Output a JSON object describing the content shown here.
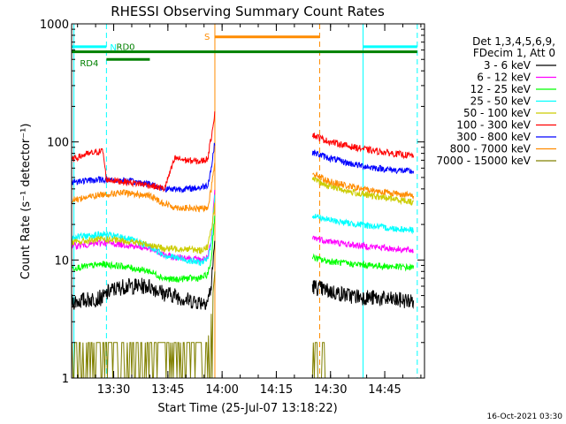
{
  "chart_data": {
    "type": "line",
    "title": "RHESSI Observing Summary Count Rates",
    "xlabel": "Start Time (25-Jul-07 13:18:22)",
    "ylabel": "Count Rate (s⁻¹ detector⁻¹)",
    "y_scale": "log",
    "ylim": [
      1,
      1000
    ],
    "xlim": [
      "13:18:22",
      "14:56:00"
    ],
    "x_ticks": [
      "13:30",
      "13:45",
      "14:00",
      "14:15",
      "14:30",
      "14:45"
    ],
    "y_ticks": [
      "1",
      "10",
      "100",
      "1000"
    ],
    "grid": false,
    "legend_placement": "right",
    "legend_header": [
      "Det 1,3,4,5,6,9,",
      "FDecim 1, Att 0"
    ],
    "footer": "16-Oct-2021 03:30",
    "series": [
      {
        "name": "3 - 6 keV",
        "color": "#000000",
        "x": [
          "13:18",
          "13:27",
          "13:29",
          "13:33",
          "13:40",
          "13:44",
          "13:47",
          "13:50",
          "13:54",
          "13:56",
          "13:57",
          "13:58",
          "14:25",
          "14:29",
          "14:35",
          "14:41",
          "14:47",
          "14:53"
        ],
        "y": [
          4.4,
          4.8,
          5.5,
          6.0,
          6.0,
          5.2,
          5.0,
          4.6,
          4.4,
          4.5,
          6.0,
          15,
          6.0,
          5.5,
          5.0,
          4.8,
          4.6,
          4.5
        ]
      },
      {
        "name": "6 - 12 keV",
        "color": "#ff00ff",
        "x": [
          "13:18",
          "13:27",
          "13:33",
          "13:40",
          "13:44",
          "13:47",
          "13:50",
          "13:54",
          "13:56",
          "13:57",
          "13:58",
          "14:25",
          "14:29",
          "14:35",
          "14:41",
          "14:47",
          "14:53"
        ],
        "y": [
          13,
          14,
          13.5,
          12.5,
          11,
          10.5,
          10.5,
          10,
          10.5,
          14,
          40,
          15.5,
          14.5,
          13.5,
          13,
          12.5,
          12
        ]
      },
      {
        "name": "12 - 25 keV",
        "color": "#00ff00",
        "x": [
          "13:18",
          "13:27",
          "13:33",
          "13:40",
          "13:44",
          "13:47",
          "13:50",
          "13:54",
          "13:56",
          "13:57",
          "13:58",
          "14:25",
          "14:29",
          "14:35",
          "14:41",
          "14:47",
          "14:53"
        ],
        "y": [
          8.5,
          9.2,
          8.8,
          8.0,
          7.0,
          6.8,
          7.0,
          7.0,
          7.5,
          10,
          25,
          10.5,
          9.8,
          9.3,
          9.0,
          8.8,
          8.6
        ]
      },
      {
        "name": "25 - 50 keV",
        "color": "#00ffff",
        "x": [
          "13:18",
          "13:27",
          "13:33",
          "13:40",
          "13:44",
          "13:47",
          "13:50",
          "13:54",
          "13:56",
          "13:57",
          "13:58",
          "14:25",
          "14:29",
          "14:35",
          "14:41",
          "14:47",
          "14:53"
        ],
        "y": [
          15.5,
          16.5,
          15.5,
          13,
          11,
          10.5,
          10,
          9.5,
          10,
          14,
          35,
          24,
          22,
          20.5,
          19.5,
          18.5,
          18
        ]
      },
      {
        "name": "50 - 100 keV",
        "color": "#cccc00",
        "x": [
          "13:18",
          "13:27",
          "13:33",
          "13:40",
          "13:44",
          "13:47",
          "13:50",
          "13:54",
          "13:56",
          "13:57",
          "13:58",
          "14:25",
          "14:29",
          "14:35",
          "14:41",
          "14:47",
          "14:53"
        ],
        "y": [
          14,
          15,
          14.5,
          13.5,
          12.5,
          12.5,
          12.5,
          12,
          13,
          18,
          30,
          48,
          43,
          38,
          35,
          33,
          31
        ]
      },
      {
        "name": "100 - 300 keV",
        "color": "#ff0000",
        "x": [
          "13:18",
          "13:22",
          "13:27",
          "13:28",
          "13:33",
          "13:40",
          "13:44",
          "13:47",
          "13:50",
          "13:54",
          "13:56",
          "13:57",
          "13:58",
          "14:25",
          "14:29",
          "14:35",
          "14:41",
          "14:47",
          "14:53"
        ],
        "y": [
          70,
          78,
          84,
          48,
          46,
          43,
          40,
          73,
          70,
          68,
          72,
          110,
          180,
          115,
          102,
          92,
          85,
          80,
          76
        ]
      },
      {
        "name": "300 - 800 keV",
        "color": "#0000ff",
        "x": [
          "13:18",
          "13:27",
          "13:33",
          "13:40",
          "13:44",
          "13:47",
          "13:50",
          "13:54",
          "13:56",
          "13:57",
          "13:58",
          "14:25",
          "14:29",
          "14:35",
          "14:41",
          "14:47",
          "14:53"
        ],
        "y": [
          46,
          48,
          47,
          44,
          40,
          40,
          40,
          41,
          43,
          60,
          100,
          82,
          74,
          66,
          61,
          58,
          56
        ]
      },
      {
        "name": "800 - 7000 keV",
        "color": "#ff8c00",
        "x": [
          "13:18",
          "13:27",
          "13:33",
          "13:40",
          "13:44",
          "13:47",
          "13:50",
          "13:54",
          "13:56",
          "13:57",
          "13:58",
          "14:25",
          "14:29",
          "14:35",
          "14:41",
          "14:47",
          "14:53"
        ],
        "y": [
          32,
          36,
          37,
          35,
          30,
          28,
          27.5,
          27,
          28,
          40,
          70,
          55,
          47,
          42,
          39,
          37,
          35
        ]
      },
      {
        "name": "7000 - 15000 keV",
        "color": "#808000",
        "x": [
          "13:18",
          "13:45",
          "13:56",
          "13:57",
          "13:58",
          "14:25",
          "14:29"
        ],
        "y": [
          2.0,
          2.0,
          2.0,
          3.5,
          8,
          2.0,
          2.0
        ]
      }
    ],
    "annotations": {
      "bars": [
        {
          "label": "N",
          "color": "#00ffff",
          "start": "13:18",
          "end": "13:28",
          "level": 640
        },
        {
          "label": "",
          "color": "#00ffff",
          "start": "14:39",
          "end": "14:54",
          "level": 640
        },
        {
          "label": "RD0",
          "color": "#008000",
          "start": "13:18",
          "end": "14:54",
          "level": 580
        },
        {
          "label": "RD4",
          "color": "#008000",
          "start": "13:28",
          "end": "13:40",
          "level": 500
        },
        {
          "label": "S",
          "color": "#ff8c00",
          "start": "13:58",
          "end": "14:27",
          "level": 775
        }
      ],
      "vlines": [
        {
          "time": "13:19",
          "color": "#00ffff",
          "style": "solid"
        },
        {
          "time": "13:28",
          "color": "#00ffff",
          "style": "dashed"
        },
        {
          "time": "13:58",
          "color": "#ff8c00",
          "style": "solid"
        },
        {
          "time": "14:27",
          "color": "#ff8c00",
          "style": "dashed"
        },
        {
          "time": "14:39",
          "color": "#00ffff",
          "style": "solid"
        },
        {
          "time": "14:54",
          "color": "#00ffff",
          "style": "dashed"
        }
      ]
    }
  }
}
